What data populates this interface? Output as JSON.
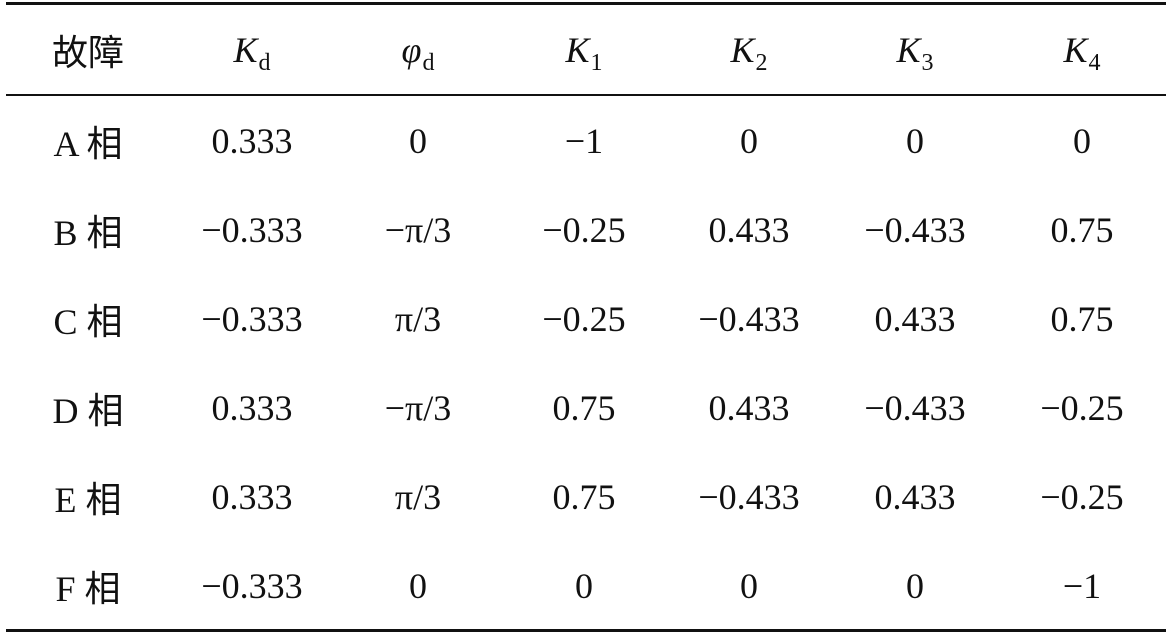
{
  "table": {
    "header": {
      "fault": "故障",
      "cols": [
        {
          "symbol": "K",
          "sub": "d"
        },
        {
          "symbol": "φ",
          "sub": "d"
        },
        {
          "symbol": "K",
          "sub": "1"
        },
        {
          "symbol": "K",
          "sub": "2"
        },
        {
          "symbol": "K",
          "sub": "3"
        },
        {
          "symbol": "K",
          "sub": "4"
        }
      ]
    },
    "rows": [
      {
        "label": "A 相",
        "cells": [
          "0.333",
          "0",
          "−1",
          "0",
          "0",
          "0"
        ]
      },
      {
        "label": "B 相",
        "cells": [
          "−0.333",
          "−π/3",
          "−0.25",
          "0.433",
          "−0.433",
          "0.75"
        ]
      },
      {
        "label": "C 相",
        "cells": [
          "−0.333",
          "π/3",
          "−0.25",
          "−0.433",
          "0.433",
          "0.75"
        ]
      },
      {
        "label": "D 相",
        "cells": [
          "0.333",
          "−π/3",
          "0.75",
          "0.433",
          "−0.433",
          "−0.25"
        ]
      },
      {
        "label": "E 相",
        "cells": [
          "0.333",
          "π/3",
          "0.75",
          "−0.433",
          "0.433",
          "−0.25"
        ]
      },
      {
        "label": "F 相",
        "cells": [
          "−0.333",
          "0",
          "0",
          "0",
          "0",
          "−1"
        ]
      }
    ]
  }
}
